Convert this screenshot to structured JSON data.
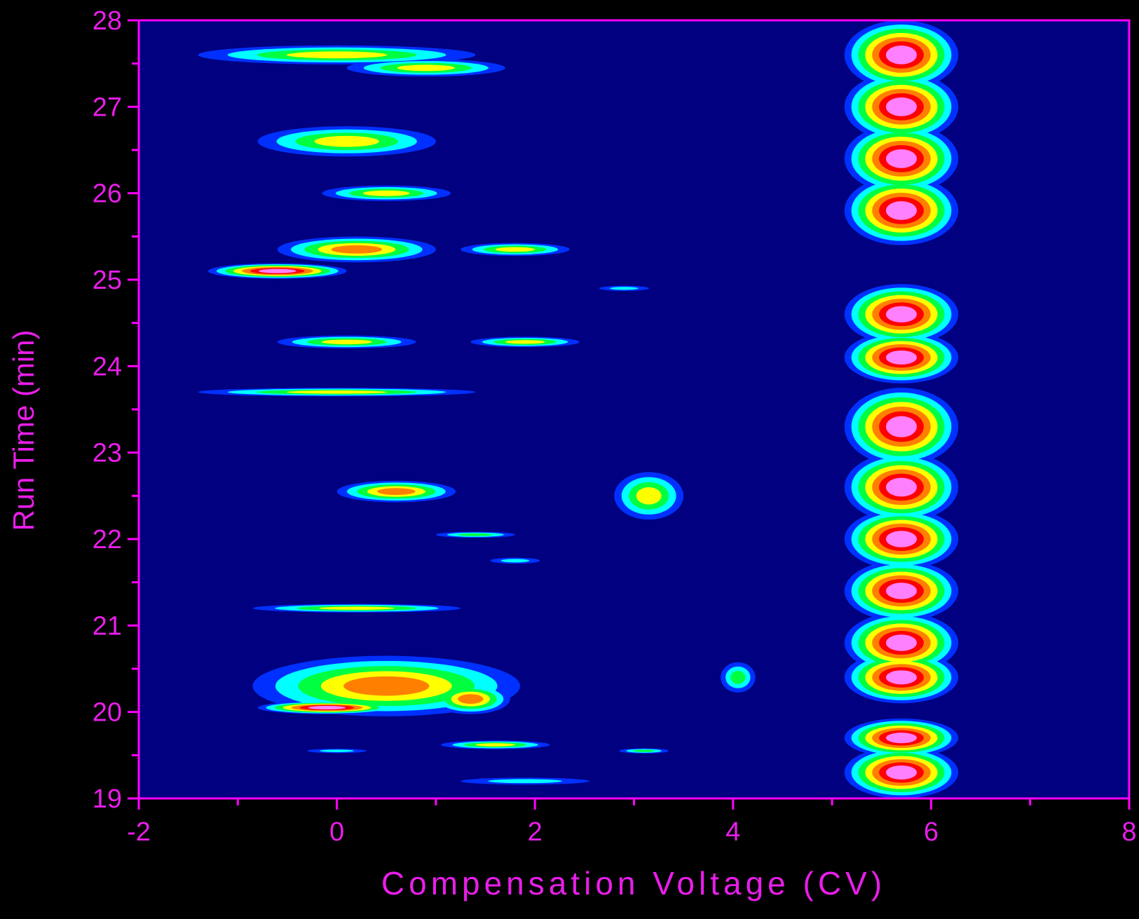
{
  "chart_data": {
    "type": "contour",
    "x_label": "Compensation Voltage (CV)",
    "y_label": "Run Time (min)",
    "xlim": [
      -2,
      8
    ],
    "ylim": [
      19,
      28
    ],
    "xticks": [
      -2,
      0,
      2,
      4,
      6,
      8
    ],
    "yticks": [
      19,
      20,
      21,
      22,
      23,
      24,
      25,
      26,
      27,
      28
    ],
    "background": "#000080",
    "axis_color": "#ff00ff",
    "colorscale": [
      "#0030ff",
      "#00ffff",
      "#00ff40",
      "#ffff00",
      "#ff8000",
      "#ff0000",
      "#ff80ff"
    ],
    "x": [
      0.0,
      0.9,
      0.1,
      0.5,
      -0.6,
      0.2,
      1.8,
      2.9,
      0.1,
      1.9,
      0.0,
      0.6,
      3.15,
      1.4,
      1.8,
      0.2,
      0.5,
      -0.1,
      1.35,
      4.05,
      1.6,
      3.1,
      1.9,
      0.0,
      5.7,
      5.7,
      5.7,
      5.7,
      5.7,
      5.7,
      5.7,
      5.7,
      5.7,
      5.7,
      5.7,
      5.7,
      5.7,
      5.7
    ],
    "y": [
      27.6,
      27.45,
      26.6,
      26.0,
      25.1,
      25.35,
      25.35,
      24.9,
      24.28,
      24.28,
      23.7,
      22.55,
      22.5,
      22.05,
      21.75,
      21.2,
      20.3,
      20.05,
      20.15,
      20.4,
      19.62,
      19.55,
      19.2,
      19.55,
      27.6,
      27.0,
      26.4,
      25.8,
      24.6,
      24.1,
      23.3,
      22.6,
      22.0,
      21.4,
      20.8,
      20.4,
      19.7,
      19.3
    ],
    "x_width": [
      2.8,
      1.6,
      1.8,
      1.3,
      1.4,
      1.6,
      1.1,
      0.5,
      1.4,
      1.1,
      2.8,
      1.2,
      0.7,
      0.8,
      0.5,
      2.1,
      2.7,
      1.4,
      0.8,
      0.35,
      1.1,
      0.5,
      1.3,
      0.6,
      1.15,
      1.15,
      1.15,
      1.15,
      1.15,
      1.15,
      1.15,
      1.15,
      1.15,
      1.15,
      1.15,
      1.15,
      1.15,
      1.15
    ],
    "y_height": [
      0.22,
      0.2,
      0.35,
      0.18,
      0.18,
      0.3,
      0.15,
      0.06,
      0.15,
      0.12,
      0.1,
      0.25,
      0.55,
      0.07,
      0.07,
      0.1,
      0.7,
      0.15,
      0.35,
      0.35,
      0.1,
      0.06,
      0.08,
      0.05,
      0.8,
      0.8,
      0.8,
      0.8,
      0.7,
      0.6,
      0.9,
      0.8,
      0.7,
      0.7,
      0.7,
      0.6,
      0.45,
      0.6
    ],
    "values": [
      4,
      4,
      4,
      4,
      7,
      5,
      4,
      2,
      4,
      4,
      4,
      5,
      4,
      3,
      2,
      4,
      5,
      7,
      5,
      3,
      4,
      3,
      2,
      2,
      7,
      7,
      7,
      7,
      7,
      7,
      7,
      7,
      7,
      7,
      7,
      7,
      7,
      7
    ]
  }
}
